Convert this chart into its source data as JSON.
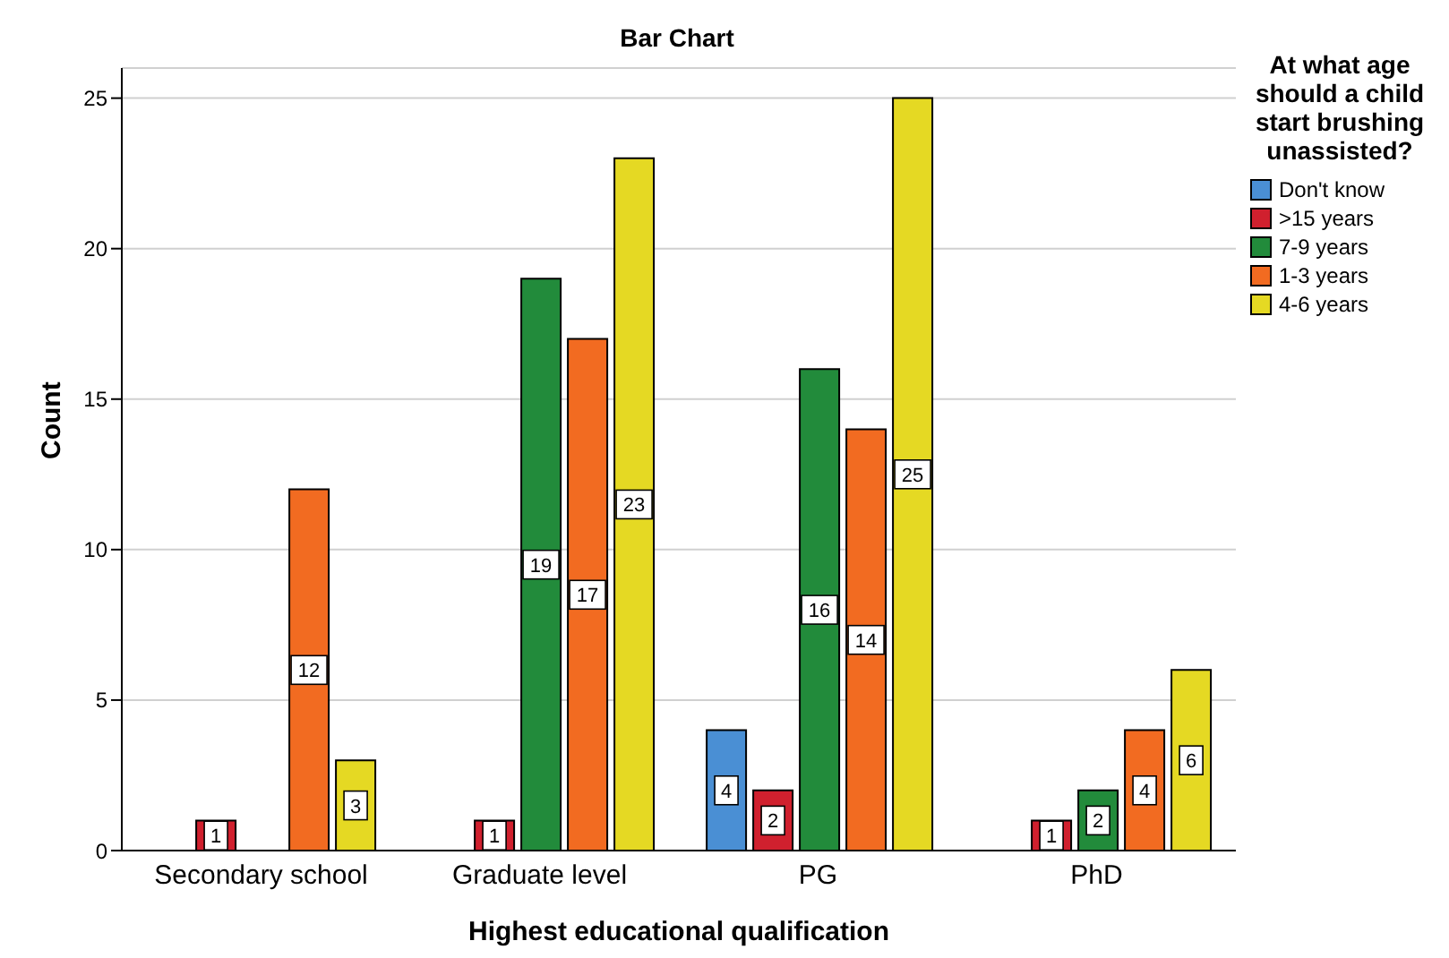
{
  "chart_data": {
    "type": "bar",
    "title": "Bar Chart",
    "xlabel": "Highest educational qualification",
    "ylabel": "Count",
    "legend_title": "At what age should a child start brushing unassisted?",
    "categories": [
      "Secondary school",
      "Graduate level",
      "PG",
      "PhD"
    ],
    "series": [
      {
        "name": "Don't know",
        "color": "#4a8fd4",
        "values": [
          null,
          null,
          4,
          null
        ]
      },
      {
        "name": ">15 years",
        "color": "#d0202e",
        "values": [
          1,
          1,
          2,
          1
        ]
      },
      {
        "name": "7-9 years",
        "color": "#228b3b",
        "values": [
          null,
          19,
          16,
          2
        ]
      },
      {
        "name": "1-3 years",
        "color": "#f26b21",
        "values": [
          12,
          17,
          14,
          4
        ]
      },
      {
        "name": "4-6 years",
        "color": "#e5d923",
        "values": [
          3,
          23,
          25,
          6
        ]
      }
    ],
    "ylim": [
      0,
      26
    ],
    "yticks": [
      0,
      5,
      10,
      15,
      20,
      25
    ],
    "grid": "y",
    "legend": "right",
    "data_labels": true
  }
}
